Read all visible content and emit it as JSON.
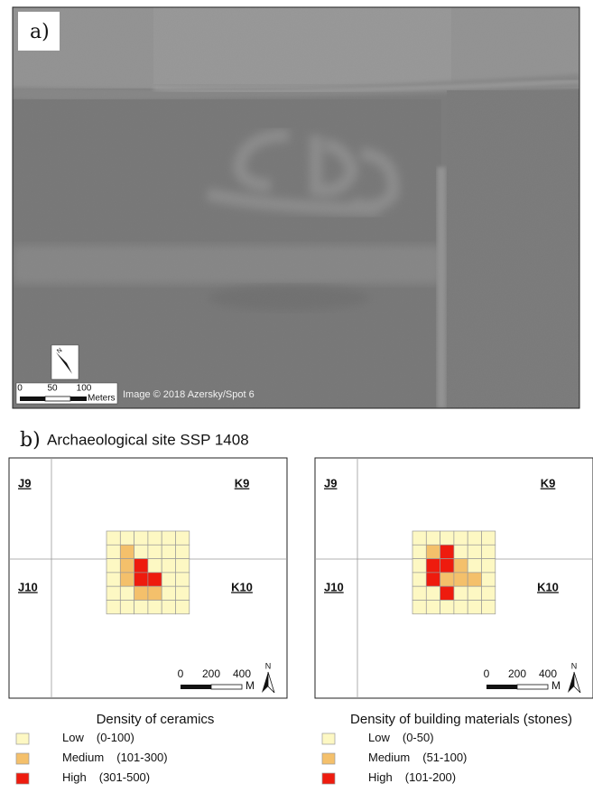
{
  "panel_a": {
    "label": "a)",
    "scale_labels": [
      "0",
      "50",
      "100"
    ],
    "scale_unit": "Meters",
    "north": "N",
    "credit": "Image © 2018 Azersky/Spot 6"
  },
  "panel_b": {
    "label": "b)",
    "title": "Archaeological site SSP 1408",
    "maps": [
      {
        "grid_labels": [
          "J9",
          "K9",
          "J10",
          "K10"
        ],
        "cells": [
          [
            0,
            0,
            0,
            0,
            0,
            0
          ],
          [
            0,
            1,
            0,
            0,
            0,
            0
          ],
          [
            0,
            1,
            2,
            0,
            0,
            0
          ],
          [
            0,
            1,
            2,
            2,
            0,
            0
          ],
          [
            0,
            0,
            1,
            1,
            0,
            0
          ],
          [
            0,
            0,
            0,
            0,
            0,
            0
          ]
        ],
        "scale_labels": [
          "0",
          "200",
          "400"
        ],
        "scale_unit": "M",
        "north": "N",
        "legend": {
          "title": "Density of ceramics",
          "items": [
            {
              "label": "Low",
              "range": "(0-100)",
              "color": "#fdf8c3"
            },
            {
              "label": "Medium",
              "range": "(101-300)",
              "color": "#f4c06b"
            },
            {
              "label": "High",
              "range": "(301-500)",
              "color": "#ee1b0e"
            }
          ]
        }
      },
      {
        "grid_labels": [
          "J9",
          "K9",
          "J10",
          "K10"
        ],
        "cells": [
          [
            0,
            0,
            0,
            0,
            0,
            0
          ],
          [
            0,
            1,
            2,
            0,
            0,
            0
          ],
          [
            0,
            2,
            2,
            1,
            0,
            0
          ],
          [
            0,
            2,
            1,
            1,
            1,
            0
          ],
          [
            0,
            0,
            2,
            0,
            0,
            0
          ],
          [
            0,
            0,
            0,
            0,
            0,
            0
          ]
        ],
        "scale_labels": [
          "0",
          "200",
          "400"
        ],
        "scale_unit": "M",
        "north": "N",
        "legend": {
          "title": "Density of building materials (stones)",
          "items": [
            {
              "label": "Low",
              "range": "(0-50)",
              "color": "#fdf8c3"
            },
            {
              "label": "Medium",
              "range": "(51-100)",
              "color": "#f4c06b"
            },
            {
              "label": "High",
              "range": "(101-200)",
              "color": "#ee1b0e"
            }
          ]
        }
      }
    ]
  }
}
